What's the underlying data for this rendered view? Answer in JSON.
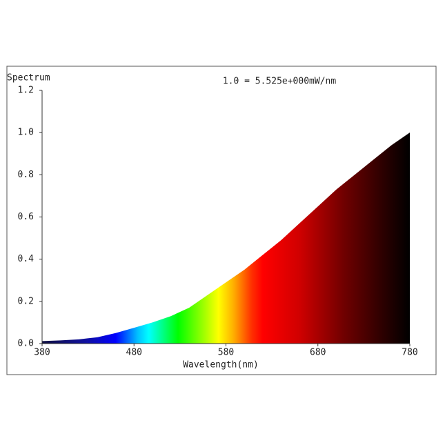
{
  "chart_data": {
    "type": "area",
    "title": "Spectrum",
    "annotation": "1.0 = 5.525e+000mW/nm",
    "x_label": "Wavelength(nm)",
    "x": [
      380,
      400,
      420,
      440,
      460,
      480,
      500,
      520,
      540,
      560,
      580,
      600,
      620,
      640,
      660,
      680,
      700,
      720,
      740,
      760,
      780
    ],
    "values": [
      0.012,
      0.015,
      0.02,
      0.03,
      0.05,
      0.075,
      0.1,
      0.13,
      0.17,
      0.23,
      0.29,
      0.35,
      0.42,
      0.49,
      0.57,
      0.65,
      0.73,
      0.8,
      0.87,
      0.94,
      1.0
    ],
    "xlim": [
      380,
      780
    ],
    "xticks": [
      380,
      480,
      580,
      680,
      780
    ],
    "ylim": [
      0,
      1.2
    ],
    "yticks": [
      {
        "value": 0,
        "label": "0.0"
      },
      {
        "value": 0.2,
        "label": "0.2"
      },
      {
        "value": 0.4,
        "label": "0.4"
      },
      {
        "value": 0.6,
        "label": "0.6"
      },
      {
        "value": 0.8,
        "label": "0.8"
      },
      {
        "value": 1.0,
        "label": "1.0"
      },
      {
        "value": 1.2,
        "label": "1.2"
      }
    ],
    "grid": false
  }
}
